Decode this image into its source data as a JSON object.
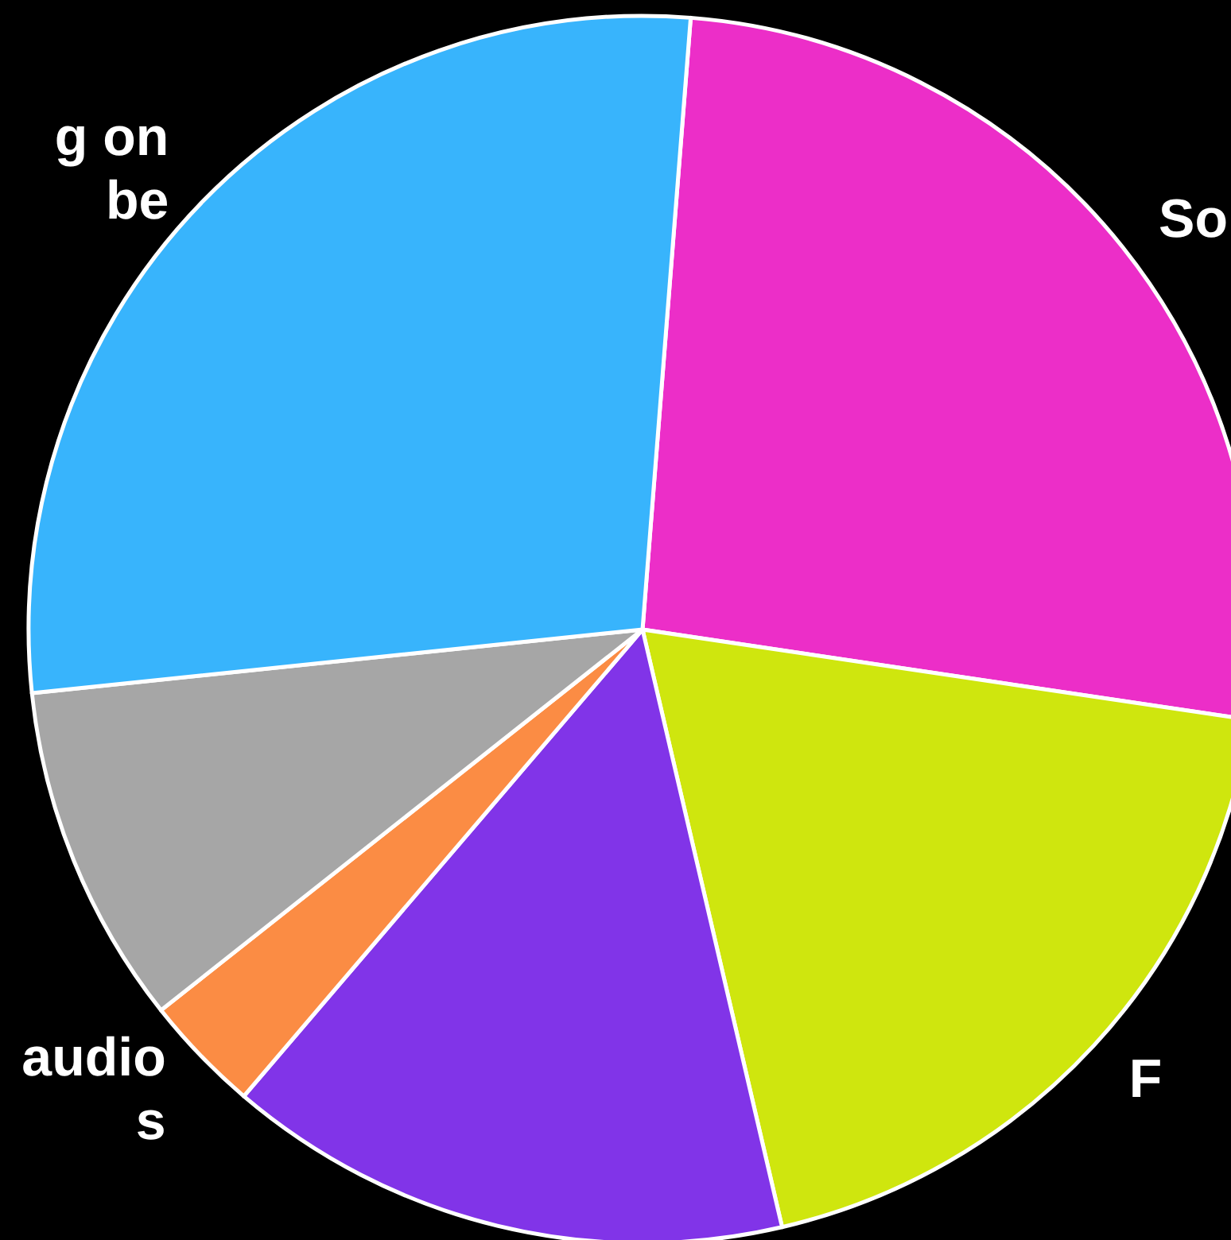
{
  "chart_data": {
    "type": "pie",
    "categories": [
      "So",
      "F",
      null,
      "audio\ns",
      null,
      "g on\nbe"
    ],
    "values": [
      26.1,
      19.0,
      14.9,
      3.1,
      9.0,
      27.9
    ],
    "colors": [
      "#ec2ec8",
      "#cfe60e",
      "#8134e8",
      "#fb8c44",
      "#a6a6a6",
      "#38b4fc"
    ]
  }
}
